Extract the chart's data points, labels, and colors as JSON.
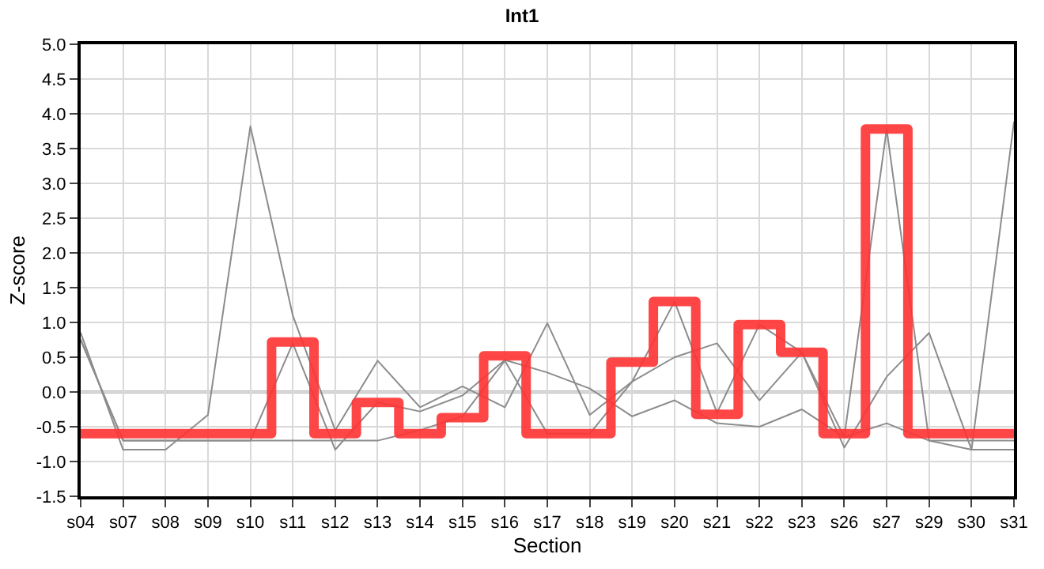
{
  "chart_data": {
    "type": "line",
    "title": "Int1",
    "xlabel": "Section",
    "ylabel": "Z-score",
    "categories": [
      "s04",
      "s07",
      "s08",
      "s09",
      "s10",
      "s11",
      "s12",
      "s13",
      "s14",
      "s15",
      "s16",
      "s17",
      "s18",
      "s19",
      "s20",
      "s21",
      "s22",
      "s23",
      "s26",
      "s27",
      "s29",
      "s30",
      "s31"
    ],
    "ylim": [
      -1.5,
      5.0
    ],
    "yticks": [
      {
        "value": -1.5,
        "label": "-1.5"
      },
      {
        "value": -1.0,
        "label": "-1.0"
      },
      {
        "value": -0.5,
        "label": "-0.5"
      },
      {
        "value": 0,
        "label": "0.0"
      },
      {
        "value": 0.5,
        "label": "0.5"
      },
      {
        "value": 1.0,
        "label": "1.0"
      },
      {
        "value": 1.5,
        "label": "1.5"
      },
      {
        "value": 2.0,
        "label": "2.0"
      },
      {
        "value": 2.5,
        "label": "2.5"
      },
      {
        "value": 3.0,
        "label": "3.0"
      },
      {
        "value": 3.5,
        "label": "3.5"
      },
      {
        "value": 4.0,
        "label": "4.0"
      },
      {
        "value": 4.5,
        "label": "4.5"
      },
      {
        "value": 5.0,
        "label": "5.0"
      }
    ],
    "grid": true,
    "line_style": "solid",
    "ref_lines": [
      {
        "axis": "y",
        "value": 0,
        "color": "#808080"
      }
    ],
    "series": [
      {
        "color": "#8c8c8c",
        "values": [
          0.85,
          -0.83,
          -0.83,
          -0.33,
          3.82,
          1.1,
          -0.55,
          0.45,
          -0.22,
          0.08,
          -0.22,
          0.99,
          -0.33,
          0.15,
          0.5,
          0.7,
          -0.12,
          0.57,
          -0.8,
          0.22,
          0.85,
          -0.83,
          3.88
        ]
      },
      {
        "color": "#8c8c8c",
        "values": [
          0.75,
          -0.7,
          -0.7,
          -0.7,
          -0.7,
          0.7,
          -0.83,
          -0.15,
          -0.28,
          -0.05,
          0.46,
          0.28,
          0.05,
          -0.35,
          -0.12,
          -0.45,
          -0.5,
          -0.25,
          -0.65,
          3.78,
          -0.7,
          -0.7,
          -0.7
        ]
      },
      {
        "color": "#8c8c8c",
        "values": [
          0.75,
          -0.7,
          -0.7,
          -0.7,
          -0.7,
          -0.7,
          -0.7,
          -0.7,
          -0.55,
          -0.35,
          0.45,
          -0.6,
          -0.6,
          0.15,
          1.3,
          -0.3,
          0.97,
          0.57,
          -0.65,
          -0.45,
          -0.7,
          -0.83,
          -0.83
        ]
      },
      {
        "type": "step",
        "color": "#ff3333",
        "values": [
          -0.6,
          -0.6,
          -0.6,
          -0.6,
          -0.6,
          0.72,
          -0.6,
          -0.15,
          -0.6,
          -0.37,
          0.52,
          -0.6,
          -0.6,
          0.43,
          1.3,
          -0.32,
          0.97,
          0.57,
          -0.6,
          3.78,
          -0.6,
          -0.6,
          -0.6
        ]
      }
    ]
  }
}
